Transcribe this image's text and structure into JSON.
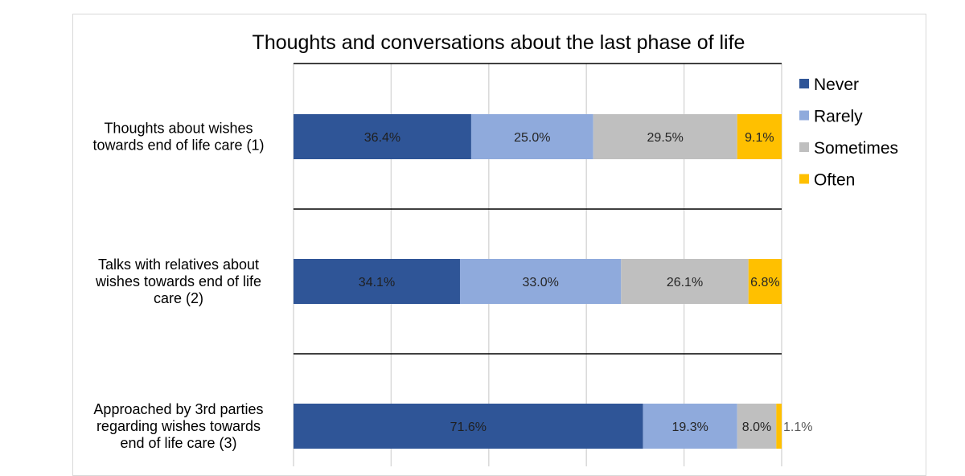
{
  "chart_data": {
    "type": "bar",
    "orientation": "horizontal",
    "stacked": true,
    "percent_stacked": true,
    "title": "Thoughts and conversations about the last phase of life",
    "xlabel": "",
    "ylabel": "",
    "xlim": [
      0,
      100
    ],
    "grid": true,
    "legend_position": "right",
    "categories": [
      [
        "Thoughts about wishes",
        "towards end of life care (1)"
      ],
      [
        "Talks with relatives about",
        "wishes towards end of life",
        "care (2)"
      ],
      [
        "Approached by 3rd parties",
        "regarding wishes towards",
        "end of life care (3)"
      ]
    ],
    "series": [
      {
        "name": "Never",
        "color": "#2f5597",
        "values": [
          36.4,
          34.1,
          71.6
        ],
        "labels": [
          "36.4%",
          "34.1%",
          "71.6%"
        ]
      },
      {
        "name": "Rarely",
        "color": "#8faadc",
        "values": [
          25.0,
          33.0,
          19.3
        ],
        "labels": [
          "25.0%",
          "33.0%",
          "19.3%"
        ]
      },
      {
        "name": "Sometimes",
        "color": "#bfbfbf",
        "values": [
          29.5,
          26.1,
          8.0
        ],
        "labels": [
          "29.5%",
          "26.1%",
          "8.0%"
        ]
      },
      {
        "name": "Often",
        "color": "#ffc000",
        "values": [
          9.1,
          6.8,
          1.1
        ],
        "labels": [
          "9.1%",
          "6.8%",
          "1.1%"
        ]
      }
    ]
  }
}
